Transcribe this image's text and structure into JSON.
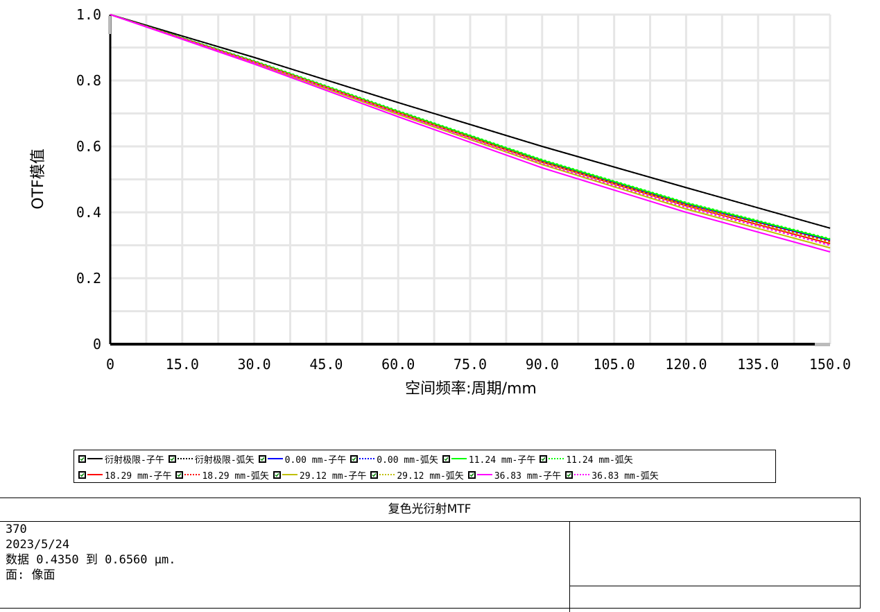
{
  "chart_data": {
    "type": "line",
    "xlabel": "空间频率:周期/mm",
    "ylabel": "OTF模值",
    "xlim": [
      0,
      150
    ],
    "ylim": [
      0,
      1.0
    ],
    "x_ticks": [
      "0",
      "15.0",
      "30.0",
      "45.0",
      "60.0",
      "75.0",
      "90.0",
      "105.0",
      "120.0",
      "135.0",
      "150.0"
    ],
    "y_ticks": [
      "0",
      "0.2",
      "0.4",
      "0.6",
      "0.8",
      "1.0"
    ],
    "grid": true,
    "series": [
      {
        "name": "衍射极限-子午",
        "color": "#000000",
        "style": "solid",
        "x": [
          0,
          30,
          60,
          90,
          120,
          150
        ],
        "y": [
          1.0,
          0.87,
          0.733,
          0.6,
          0.475,
          0.352
        ]
      },
      {
        "name": "衍射极限-弧矢",
        "color": "#000000",
        "style": "dotted",
        "x": [
          0,
          30,
          60,
          90,
          120,
          150
        ],
        "y": [
          1.0,
          0.87,
          0.733,
          0.6,
          0.475,
          0.352
        ]
      },
      {
        "name": "0.00 mm-子午",
        "color": "#0000ff",
        "style": "solid",
        "x": [
          0,
          30,
          60,
          90,
          120,
          150
        ],
        "y": [
          1.0,
          0.858,
          0.705,
          0.555,
          0.425,
          0.315
        ]
      },
      {
        "name": "0.00 mm-弧矢",
        "color": "#0000ff",
        "style": "dotted",
        "x": [
          0,
          30,
          60,
          90,
          120,
          150
        ],
        "y": [
          1.0,
          0.858,
          0.705,
          0.555,
          0.425,
          0.315
        ]
      },
      {
        "name": "11.24 mm-子午",
        "color": "#00ff00",
        "style": "solid",
        "x": [
          0,
          30,
          60,
          90,
          120,
          150
        ],
        "y": [
          1.0,
          0.858,
          0.706,
          0.558,
          0.428,
          0.318
        ]
      },
      {
        "name": "11.24 mm-弧矢",
        "color": "#00ff00",
        "style": "dotted",
        "x": [
          0,
          30,
          60,
          90,
          120,
          150
        ],
        "y": [
          1.0,
          0.86,
          0.708,
          0.56,
          0.43,
          0.32
        ]
      },
      {
        "name": "18.29 mm-子午",
        "color": "#ff0000",
        "style": "solid",
        "x": [
          0,
          30,
          60,
          90,
          120,
          150
        ],
        "y": [
          1.0,
          0.856,
          0.702,
          0.552,
          0.42,
          0.305
        ]
      },
      {
        "name": "18.29 mm-弧矢",
        "color": "#ff0000",
        "style": "dotted",
        "x": [
          0,
          30,
          60,
          90,
          120,
          150
        ],
        "y": [
          1.0,
          0.857,
          0.704,
          0.554,
          0.424,
          0.312
        ]
      },
      {
        "name": "29.12 mm-子午",
        "color": "#bfbf00",
        "style": "solid",
        "x": [
          0,
          30,
          60,
          90,
          120,
          150
        ],
        "y": [
          1.0,
          0.853,
          0.697,
          0.545,
          0.41,
          0.292
        ]
      },
      {
        "name": "29.12 mm-弧矢",
        "color": "#bfbf00",
        "style": "dotted",
        "x": [
          0,
          30,
          60,
          90,
          120,
          150
        ],
        "y": [
          1.0,
          0.857,
          0.703,
          0.552,
          0.421,
          0.308
        ]
      },
      {
        "name": "36.83 mm-子午",
        "color": "#ff00ff",
        "style": "solid",
        "x": [
          0,
          30,
          60,
          90,
          120,
          150
        ],
        "y": [
          1.0,
          0.85,
          0.69,
          0.535,
          0.4,
          0.28
        ]
      },
      {
        "name": "36.83 mm-弧矢",
        "color": "#ff00ff",
        "style": "dotted",
        "x": [
          0,
          30,
          60,
          90,
          120,
          150
        ],
        "y": [
          1.0,
          0.855,
          0.7,
          0.548,
          0.415,
          0.3
        ]
      }
    ]
  },
  "info": {
    "title": "复色光衍射MTF",
    "lines": [
      "370",
      "2023/5/24",
      "数据 0.4350 到 0.6560 μm.",
      "面: 像面"
    ]
  }
}
